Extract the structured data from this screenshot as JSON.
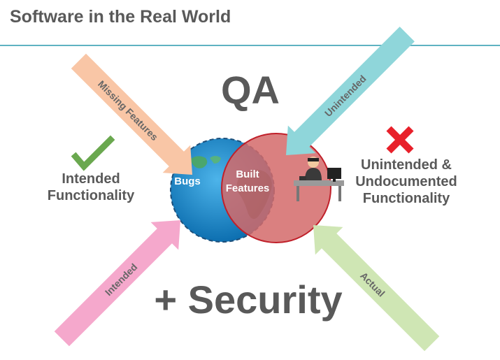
{
  "header": {
    "title": "Software in the Real World"
  },
  "diagram": {
    "qa_label": "QA",
    "security_label": "+ Security",
    "intended_functionality": [
      "Intended",
      "Functionality"
    ],
    "unintended_functionality": [
      "Unintended &",
      "Undocumented",
      "Functionality"
    ],
    "bugs_label": "Bugs",
    "built_features": [
      "Built",
      "Features"
    ],
    "arrows": {
      "missing_features": "Missing Features",
      "unintended": "Unintended",
      "intended": "Intended",
      "actual": "Actual"
    },
    "colors": {
      "globe_blue": "#1a86c8",
      "red_circle": "#d46a6a",
      "peach_arrow": "#f9c6a6",
      "cyan_arrow": "#8fd6da",
      "pink_arrow": "#f5a8cc",
      "green_arrow": "#cfe6b4",
      "check_green": "#6aa84f",
      "cross_red": "#e8202a"
    }
  }
}
